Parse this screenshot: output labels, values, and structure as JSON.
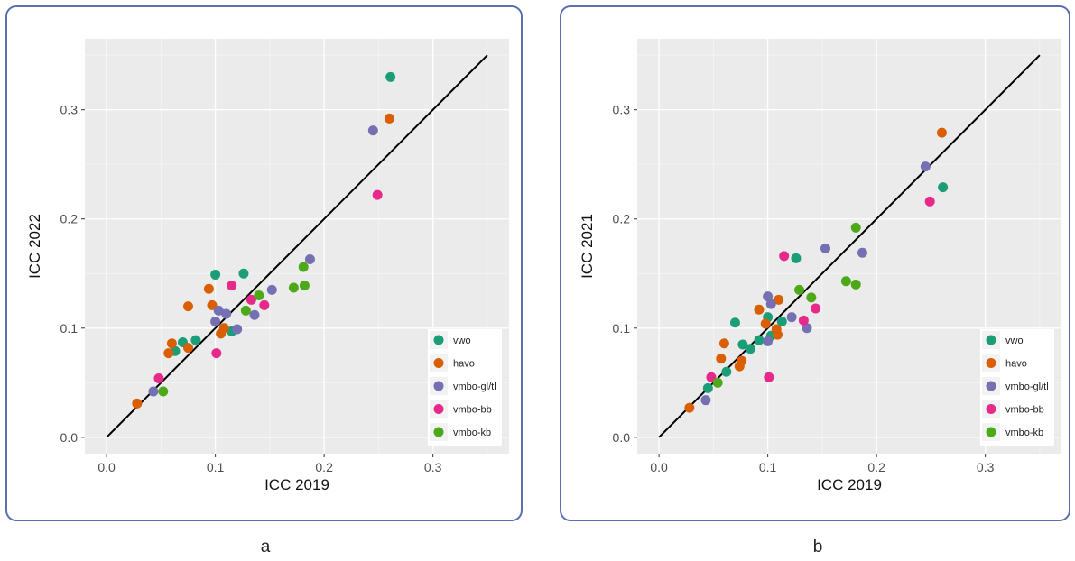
{
  "chart_data": [
    {
      "type": "scatter",
      "caption": "a",
      "xlabel": "ICC 2019",
      "ylabel": "ICC 2022",
      "xlim": [
        -0.02,
        0.37
      ],
      "ylim": [
        -0.015,
        0.365
      ],
      "xticks": [
        0.0,
        0.1,
        0.2,
        0.3
      ],
      "yticks": [
        0.0,
        0.1,
        0.2,
        0.3
      ],
      "x_tick_labels": [
        "0.0",
        "0.1",
        "0.2",
        "0.3"
      ],
      "y_tick_labels": [
        "0.0",
        "0.1",
        "0.2",
        "0.3"
      ],
      "grid": true,
      "legend_position": "bottom-right",
      "reference_line": {
        "x": [
          0,
          0.35
        ],
        "y": [
          0,
          0.35
        ]
      },
      "series": [
        {
          "name": "vwo",
          "color": "#1b9e77",
          "x": [
            0.261,
            0.1,
            0.126,
            0.07,
            0.082,
            0.063,
            0.115
          ],
          "y": [
            0.33,
            0.149,
            0.15,
            0.087,
            0.089,
            0.079,
            0.097
          ]
        },
        {
          "name": "havo",
          "color": "#d95f02",
          "x": [
            0.26,
            0.094,
            0.075,
            0.097,
            0.06,
            0.057,
            0.075,
            0.108,
            0.105,
            0.028
          ],
          "y": [
            0.292,
            0.136,
            0.12,
            0.121,
            0.086,
            0.077,
            0.082,
            0.1,
            0.095,
            0.031
          ]
        },
        {
          "name": "vmbo-gl/tl",
          "color": "#7570b3",
          "x": [
            0.245,
            0.187,
            0.152,
            0.136,
            0.12,
            0.103,
            0.11,
            0.1,
            0.043
          ],
          "y": [
            0.281,
            0.163,
            0.135,
            0.112,
            0.099,
            0.116,
            0.113,
            0.106,
            0.042
          ]
        },
        {
          "name": "vmbo-bb",
          "color": "#e7298a",
          "x": [
            0.249,
            0.115,
            0.145,
            0.133,
            0.101,
            0.048
          ],
          "y": [
            0.222,
            0.139,
            0.121,
            0.126,
            0.077,
            0.054
          ]
        },
        {
          "name": "vmbo-kb",
          "color": "#4ea918",
          "x": [
            0.181,
            0.182,
            0.172,
            0.14,
            0.128,
            0.052
          ],
          "y": [
            0.156,
            0.139,
            0.137,
            0.13,
            0.116,
            0.042
          ]
        }
      ]
    },
    {
      "type": "scatter",
      "caption": "b",
      "xlabel": "ICC 2019",
      "ylabel": "ICC 2021",
      "xlim": [
        -0.02,
        0.37
      ],
      "ylim": [
        -0.015,
        0.365
      ],
      "xticks": [
        0.0,
        0.1,
        0.2,
        0.3
      ],
      "yticks": [
        0.0,
        0.1,
        0.2,
        0.3
      ],
      "x_tick_labels": [
        "0.0",
        "0.1",
        "0.2",
        "0.3"
      ],
      "y_tick_labels": [
        "0.0",
        "0.1",
        "0.2",
        "0.3"
      ],
      "grid": true,
      "legend_position": "bottom-right",
      "reference_line": {
        "x": [
          0,
          0.35
        ],
        "y": [
          0,
          0.35
        ]
      },
      "series": [
        {
          "name": "vwo",
          "color": "#1b9e77",
          "x": [
            0.261,
            0.126,
            0.07,
            0.1,
            0.113,
            0.077,
            0.084,
            0.092,
            0.103,
            0.062,
            0.045
          ],
          "y": [
            0.229,
            0.164,
            0.105,
            0.11,
            0.106,
            0.085,
            0.081,
            0.089,
            0.093,
            0.06,
            0.045
          ]
        },
        {
          "name": "havo",
          "color": "#d95f02",
          "x": [
            0.26,
            0.092,
            0.11,
            0.098,
            0.06,
            0.108,
            0.109,
            0.057,
            0.076,
            0.074,
            0.028
          ],
          "y": [
            0.279,
            0.117,
            0.126,
            0.104,
            0.086,
            0.099,
            0.094,
            0.072,
            0.07,
            0.065,
            0.027
          ]
        },
        {
          "name": "vmbo-gl/tl",
          "color": "#7570b3",
          "x": [
            0.245,
            0.153,
            0.187,
            0.1,
            0.103,
            0.122,
            0.136,
            0.1,
            0.043
          ],
          "y": [
            0.248,
            0.173,
            0.169,
            0.129,
            0.122,
            0.11,
            0.1,
            0.088,
            0.034
          ]
        },
        {
          "name": "vmbo-bb",
          "color": "#e7298a",
          "x": [
            0.249,
            0.115,
            0.144,
            0.133,
            0.101,
            0.048
          ],
          "y": [
            0.216,
            0.166,
            0.118,
            0.107,
            0.055,
            0.055
          ]
        },
        {
          "name": "vmbo-kb",
          "color": "#4ea918",
          "x": [
            0.181,
            0.129,
            0.14,
            0.172,
            0.181,
            0.054
          ],
          "y": [
            0.192,
            0.135,
            0.128,
            0.143,
            0.14,
            0.05
          ]
        }
      ]
    }
  ]
}
